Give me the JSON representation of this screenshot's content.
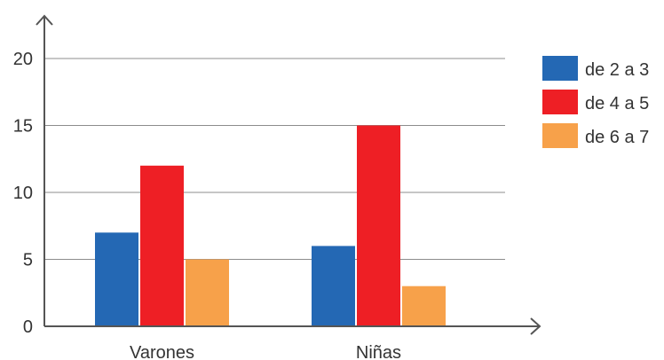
{
  "chart_data": {
    "type": "bar",
    "categories": [
      "Varones",
      "Niñas"
    ],
    "series": [
      {
        "name": "de 2 a 3",
        "values": [
          7,
          6
        ],
        "color": "#2468b4"
      },
      {
        "name": "de 4 a 5",
        "values": [
          12,
          15
        ],
        "color": "#ee1f25"
      },
      {
        "name": "de 6 a 7",
        "values": [
          5,
          3
        ],
        "color": "#f7a14a"
      }
    ],
    "yticks": [
      0,
      5,
      10,
      15,
      20
    ],
    "ylim": [
      0,
      20
    ],
    "grid": true,
    "legend": "right"
  }
}
